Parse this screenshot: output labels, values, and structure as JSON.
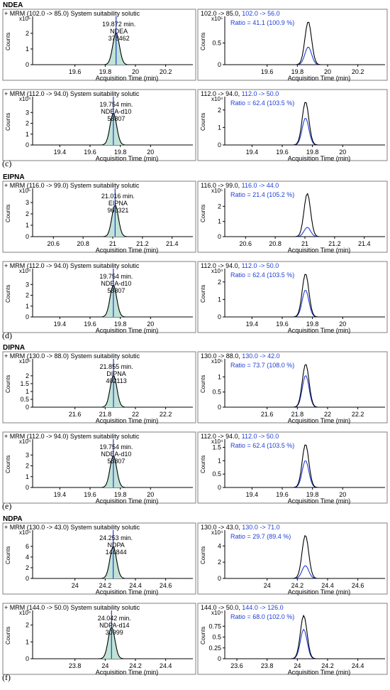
{
  "axis_title": "Acquisition Time (min)",
  "y_axis_label": "Counts",
  "colors": {
    "quant": "#000000",
    "qual": "#1f3fd6",
    "fill": "#bfe3d6",
    "marker": "#1f3fd6"
  },
  "sections": [
    {
      "id": "NDEA",
      "title": "NDEA",
      "label_above": "",
      "label_below": "(c)",
      "rows": [
        {
          "left": {
            "header": "+ MRM (102.0 -> 85.0) System suitability solutic",
            "rt": "19.872 min.",
            "compound": "NDEA",
            "area": "378462",
            "exponent": "x10⁵",
            "yticks": [
              0,
              1,
              2
            ],
            "ylim": [
              0,
              2.9
            ],
            "center": 19.872,
            "xlim": [
              19.32,
              20.38
            ],
            "xticks": [
              19.6,
              19.8,
              20,
              20.2
            ]
          },
          "right": {
            "hdr_black": "102.0 -> 85.0, ",
            "hdr_blue": "102.0 -> 56.0",
            "ratio": "Ratio = 41.1 (100.9 %)",
            "exponent": "x10⁵",
            "yticks": [
              0,
              0.5
            ],
            "ylim": [
              0,
              1.05
            ],
            "center": 19.872,
            "xlim": [
              19.32,
              20.38
            ],
            "xticks": [
              19.6,
              19.8,
              20,
              20.2
            ],
            "rel_qual": 0.41
          }
        },
        {
          "left": {
            "header": "+ MRM (112.0 -> 94.0) System suitability solutic",
            "rt": "19.754 min.",
            "compound": "NDEA-d10",
            "area": "58807",
            "exponent": "x10⁴",
            "yticks": [
              0,
              1,
              2,
              3
            ],
            "ylim": [
              0,
              4.2
            ],
            "center": 19.754,
            "xlim": [
              19.22,
              20.28
            ],
            "xticks": [
              19.4,
              19.6,
              19.8,
              20
            ]
          },
          "right": {
            "hdr_black": "112.0 -> 94.0, ",
            "hdr_blue": "112.0 -> 50.0",
            "ratio": "Ratio = 62.4 (103.5 %)",
            "exponent": "x10⁴",
            "yticks": [
              0,
              1,
              2
            ],
            "ylim": [
              0,
              2.6
            ],
            "center": 19.754,
            "xlim": [
              19.22,
              20.28
            ],
            "xticks": [
              19.4,
              19.6,
              19.8,
              20
            ],
            "rel_qual": 0.624
          }
        }
      ]
    },
    {
      "id": "EIPNA",
      "title": "EIPNA",
      "label_above": "",
      "label_below": "(d)",
      "rows": [
        {
          "left": {
            "header": "+ MRM (116.0 -> 99.0) System suitability solutic",
            "rt": "21.016 min.",
            "compound": "EIPNA",
            "area": "960321",
            "exponent": "x10⁵",
            "yticks": [
              0,
              1,
              2,
              3
            ],
            "ylim": [
              0,
              4.0
            ],
            "center": 21.016,
            "xlim": [
              20.46,
              21.54
            ],
            "xticks": [
              20.6,
              20.8,
              21,
              21.2,
              21.4
            ]
          },
          "right": {
            "hdr_black": "116.0 -> 99.0, ",
            "hdr_blue": "116.0 -> 44.0",
            "ratio": "Ratio = 21.4 (105.2 %)",
            "exponent": "x10⁵",
            "yticks": [
              0,
              1,
              2
            ],
            "ylim": [
              0,
              3.0
            ],
            "center": 21.016,
            "xlim": [
              20.46,
              21.54
            ],
            "xticks": [
              20.6,
              20.8,
              21,
              21.2,
              21.4
            ],
            "rel_qual": 0.214
          }
        },
        {
          "left": {
            "header": "+ MRM (112.0 -> 94.0) System suitability solutic",
            "rt": "19.754 min.",
            "compound": "NDEA-d10",
            "area": "58807",
            "exponent": "x10⁴",
            "yticks": [
              0,
              1,
              2,
              3
            ],
            "ylim": [
              0,
              4.2
            ],
            "center": 19.754,
            "xlim": [
              19.22,
              20.28
            ],
            "xticks": [
              19.4,
              19.6,
              19.8,
              20
            ]
          },
          "right": {
            "hdr_black": "112.0 -> 94.0, ",
            "hdr_blue": "112.0 -> 50.0",
            "ratio": "Ratio = 62.4 (103.5 %)",
            "exponent": "x10⁴",
            "yticks": [
              0,
              1,
              2
            ],
            "ylim": [
              0,
              2.6
            ],
            "center": 19.754,
            "xlim": [
              19.22,
              20.28
            ],
            "xticks": [
              19.4,
              19.6,
              19.8,
              20
            ],
            "rel_qual": 0.624
          }
        }
      ]
    },
    {
      "id": "DIPNA",
      "title": "DIPNA",
      "label_above": "",
      "label_below": "(e)",
      "rows": [
        {
          "left": {
            "header": "+ MRM (130.0 -> 88.0) System suitability solutic",
            "rt": "21.855 min.",
            "compound": "DIPNA",
            "area": "402113",
            "exponent": "x10⁵",
            "yticks": [
              0,
              0.5,
              1,
              1.5,
              2
            ],
            "ylim": [
              0,
              2.9
            ],
            "center": 21.855,
            "xlim": [
              21.32,
              22.38
            ],
            "xticks": [
              21.6,
              21.8,
              22,
              22.2
            ]
          },
          "right": {
            "hdr_black": "130.0 -> 88.0, ",
            "hdr_blue": "130.0 -> 42.0",
            "ratio": "Ratio = 73.7 (108.0 %)",
            "exponent": "x10⁵",
            "yticks": [
              0,
              0.5,
              1
            ],
            "ylim": [
              0,
              1.5
            ],
            "center": 21.855,
            "xlim": [
              21.32,
              22.38
            ],
            "xticks": [
              21.6,
              21.8,
              22,
              22.2
            ],
            "rel_qual": 0.737
          }
        },
        {
          "left": {
            "header": "+ MRM (112.0 -> 94.0) System suitability solutic",
            "rt": "19.754 min.",
            "compound": "NDEA-d10",
            "area": "58807",
            "exponent": "x10⁴",
            "yticks": [
              0,
              1,
              2,
              3
            ],
            "ylim": [
              0,
              4.2
            ],
            "center": 19.754,
            "xlim": [
              19.22,
              20.28
            ],
            "xticks": [
              19.4,
              19.6,
              19.8,
              20
            ]
          },
          "right": {
            "hdr_black": "112.0 -> 94.0, ",
            "hdr_blue": "112.0 -> 50.0",
            "ratio": "Ratio = 62.4 (103.5 %)",
            "exponent": "x10⁴",
            "yticks": [
              0,
              0.5,
              1,
              1.5
            ],
            "ylim": [
              0,
              1.7
            ],
            "center": 19.754,
            "xlim": [
              19.22,
              20.28
            ],
            "xticks": [
              19.4,
              19.6,
              19.8,
              20
            ],
            "rel_qual": 0.624
          }
        }
      ]
    },
    {
      "id": "NDPA",
      "title": "NDPA",
      "label_above": "",
      "label_below": "(f)",
      "rows": [
        {
          "left": {
            "header": "+ MRM (130.0 -> 43.0) System suitability solutic",
            "rt": "24.253 min.",
            "compound": "NDPA",
            "area": "144844",
            "exponent": "x10⁴",
            "yticks": [
              0,
              2,
              4,
              6
            ],
            "ylim": [
              0,
              8.5
            ],
            "center": 24.253,
            "xlim": [
              23.72,
              24.78
            ],
            "xticks": [
              24,
              24.2,
              24.4,
              24.6
            ]
          },
          "right": {
            "hdr_black": "130.0 -> 43.0, ",
            "hdr_blue": "130.0 -> 71.0",
            "ratio": "Ratio = 29.7 (89.4 %)",
            "exponent": "x10⁴",
            "yticks": [
              0,
              2,
              4
            ],
            "ylim": [
              0,
              5.6
            ],
            "center": 24.253,
            "xlim": [
              23.72,
              24.78
            ],
            "xticks": [
              24,
              24.2,
              24.4,
              24.6
            ],
            "rel_qual": 0.297
          }
        },
        {
          "left": {
            "header": "+ MRM (144.0 -> 50.0) System suitability solutic",
            "rt": "24.042 min.",
            "compound": "NDPA-d14",
            "area": "30999",
            "exponent": "x10⁴",
            "yticks": [
              0,
              1,
              2
            ],
            "ylim": [
              0,
              2.7
            ],
            "center": 24.042,
            "xlim": [
              23.52,
              24.58
            ],
            "xticks": [
              23.8,
              24,
              24.2,
              24.4
            ]
          },
          "right": {
            "hdr_black": "144.0 -> 50.0, ",
            "hdr_blue": "144.0 -> 126.0",
            "ratio": "Ratio = 68.0 (102.0 %)",
            "exponent": "x10⁴",
            "yticks": [
              0,
              0.25,
              0.5,
              0.75
            ],
            "ylim": [
              0,
              1.05
            ],
            "center": 24.042,
            "xlim": [
              23.52,
              24.58
            ],
            "xticks": [
              23.6,
              23.8,
              24,
              24.2,
              24.4
            ],
            "rel_qual": 0.68
          }
        }
      ]
    }
  ],
  "chart_data": {
    "type": "line",
    "title": "",
    "xlabel": "Acquisition Time (min)",
    "ylabel": "Counts",
    "series": [
      {
        "name": "NDEA",
        "x": [
          19.872
        ],
        "values": [
          378462
        ]
      },
      {
        "name": "NDEA-d10",
        "x": [
          19.754
        ],
        "values": [
          58807
        ]
      },
      {
        "name": "EIPNA",
        "x": [
          21.016
        ],
        "values": [
          960321
        ]
      },
      {
        "name": "DIPNA",
        "x": [
          21.855
        ],
        "values": [
          402113
        ]
      },
      {
        "name": "NDPA",
        "x": [
          24.253
        ],
        "values": [
          144844
        ]
      },
      {
        "name": "NDPA-d14",
        "x": [
          24.042
        ],
        "values": [
          30999
        ]
      }
    ]
  }
}
